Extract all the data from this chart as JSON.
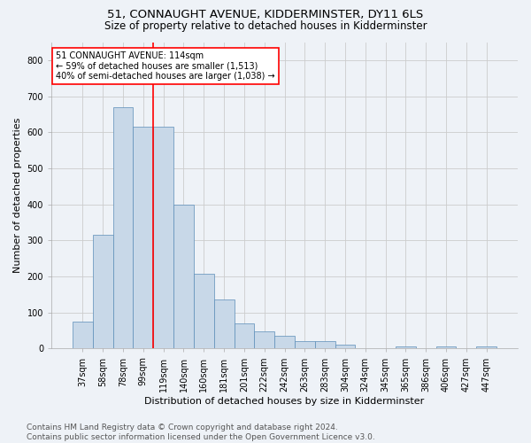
{
  "title": "51, CONNAUGHT AVENUE, KIDDERMINSTER, DY11 6LS",
  "subtitle": "Size of property relative to detached houses in Kidderminster",
  "xlabel": "Distribution of detached houses by size in Kidderminster",
  "ylabel": "Number of detached properties",
  "footer_line1": "Contains HM Land Registry data © Crown copyright and database right 2024.",
  "footer_line2": "Contains public sector information licensed under the Open Government Licence v3.0.",
  "categories": [
    "37sqm",
    "58sqm",
    "78sqm",
    "99sqm",
    "119sqm",
    "140sqm",
    "160sqm",
    "181sqm",
    "201sqm",
    "222sqm",
    "242sqm",
    "263sqm",
    "283sqm",
    "304sqm",
    "324sqm",
    "345sqm",
    "365sqm",
    "386sqm",
    "406sqm",
    "427sqm",
    "447sqm"
  ],
  "values": [
    75,
    315,
    670,
    615,
    615,
    400,
    207,
    136,
    70,
    47,
    35,
    20,
    20,
    12,
    0,
    0,
    7,
    0,
    7,
    0,
    7
  ],
  "bar_color": "#c8d8e8",
  "bar_edge_color": "#5b8db8",
  "vline_x_index": 4,
  "vline_color": "red",
  "annotation_text": "51 CONNAUGHT AVENUE: 114sqm\n← 59% of detached houses are smaller (1,513)\n40% of semi-detached houses are larger (1,038) →",
  "annotation_box_color": "white",
  "annotation_box_edge": "red",
  "ylim": [
    0,
    850
  ],
  "yticks": [
    0,
    100,
    200,
    300,
    400,
    500,
    600,
    700,
    800
  ],
  "grid_color": "#cccccc",
  "background_color": "#eef2f7",
  "title_fontsize": 9.5,
  "subtitle_fontsize": 8.5,
  "xlabel_fontsize": 8,
  "ylabel_fontsize": 8,
  "tick_fontsize": 7,
  "annotation_fontsize": 7,
  "footer_fontsize": 6.5
}
